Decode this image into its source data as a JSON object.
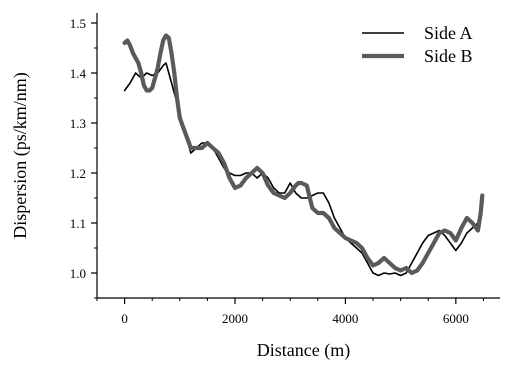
{
  "chart_data": {
    "type": "line",
    "title": "",
    "xlabel": "Distance (m)",
    "ylabel": "Dispersion (ps/km/nm)",
    "xlim": [
      -500,
      6800
    ],
    "ylim": [
      0.95,
      1.52
    ],
    "xticks": [
      0,
      2000,
      4000,
      6000
    ],
    "xtick_labels": [
      "0",
      "2000",
      "4000",
      "6000"
    ],
    "yticks": [
      1.0,
      1.1,
      1.2,
      1.3,
      1.4,
      1.5
    ],
    "ytick_labels": [
      "1.0",
      "1.1",
      "1.2",
      "1.3",
      "1.4",
      "1.5"
    ],
    "grid": false,
    "legend_position": "top-right",
    "series": [
      {
        "name": "Side A",
        "color": "#000000",
        "line_style": "thin",
        "x": [
          0,
          100,
          200,
          300,
          400,
          500,
          600,
          700,
          750,
          800,
          900,
          1000,
          1100,
          1200,
          1300,
          1400,
          1500,
          1600,
          1700,
          1800,
          1900,
          2000,
          2100,
          2200,
          2300,
          2400,
          2500,
          2600,
          2700,
          2800,
          2900,
          3000,
          3100,
          3200,
          3300,
          3400,
          3500,
          3600,
          3700,
          3800,
          3900,
          4000,
          4100,
          4200,
          4300,
          4400,
          4500,
          4600,
          4700,
          4800,
          4900,
          5000,
          5100,
          5200,
          5300,
          5400,
          5500,
          5600,
          5700,
          5800,
          5900,
          6000,
          6100,
          6200,
          6300,
          6400,
          6450
        ],
        "values": [
          1.365,
          1.38,
          1.4,
          1.39,
          1.4,
          1.395,
          1.4,
          1.415,
          1.42,
          1.4,
          1.36,
          1.32,
          1.28,
          1.24,
          1.25,
          1.26,
          1.26,
          1.25,
          1.23,
          1.21,
          1.2,
          1.195,
          1.195,
          1.2,
          1.2,
          1.19,
          1.2,
          1.19,
          1.17,
          1.16,
          1.16,
          1.18,
          1.16,
          1.15,
          1.15,
          1.155,
          1.16,
          1.16,
          1.14,
          1.11,
          1.09,
          1.07,
          1.06,
          1.05,
          1.04,
          1.02,
          1.0,
          0.995,
          1.0,
          0.998,
          1.0,
          0.995,
          1.0,
          1.02,
          1.04,
          1.06,
          1.075,
          1.08,
          1.085,
          1.075,
          1.06,
          1.045,
          1.06,
          1.08,
          1.09,
          1.1,
          1.11
        ]
      },
      {
        "name": "Side B",
        "color": "#5a5a5a",
        "line_style": "thick",
        "x": [
          0,
          50,
          100,
          150,
          200,
          250,
          300,
          350,
          400,
          450,
          500,
          550,
          600,
          650,
          700,
          750,
          800,
          850,
          900,
          950,
          1000,
          1100,
          1200,
          1300,
          1400,
          1500,
          1600,
          1700,
          1800,
          1900,
          2000,
          2100,
          2200,
          2300,
          2400,
          2500,
          2600,
          2700,
          2800,
          2900,
          3000,
          3100,
          3150,
          3200,
          3300,
          3400,
          3500,
          3600,
          3700,
          3800,
          3900,
          4000,
          4100,
          4200,
          4300,
          4400,
          4500,
          4600,
          4700,
          4800,
          4900,
          5000,
          5100,
          5200,
          5300,
          5400,
          5500,
          5600,
          5700,
          5800,
          5900,
          6000,
          6100,
          6200,
          6300,
          6400,
          6450,
          6480
        ],
        "values": [
          1.46,
          1.465,
          1.455,
          1.44,
          1.43,
          1.42,
          1.4,
          1.375,
          1.365,
          1.365,
          1.37,
          1.39,
          1.41,
          1.44,
          1.465,
          1.475,
          1.47,
          1.44,
          1.4,
          1.35,
          1.31,
          1.28,
          1.25,
          1.25,
          1.25,
          1.26,
          1.25,
          1.24,
          1.22,
          1.19,
          1.17,
          1.175,
          1.19,
          1.2,
          1.21,
          1.2,
          1.175,
          1.16,
          1.155,
          1.15,
          1.16,
          1.175,
          1.18,
          1.18,
          1.175,
          1.13,
          1.12,
          1.12,
          1.11,
          1.09,
          1.08,
          1.07,
          1.065,
          1.06,
          1.05,
          1.03,
          1.015,
          1.02,
          1.03,
          1.02,
          1.01,
          1.005,
          1.01,
          1.0,
          1.005,
          1.02,
          1.04,
          1.06,
          1.08,
          1.085,
          1.08,
          1.065,
          1.09,
          1.11,
          1.1,
          1.085,
          1.12,
          1.155
        ]
      }
    ]
  }
}
